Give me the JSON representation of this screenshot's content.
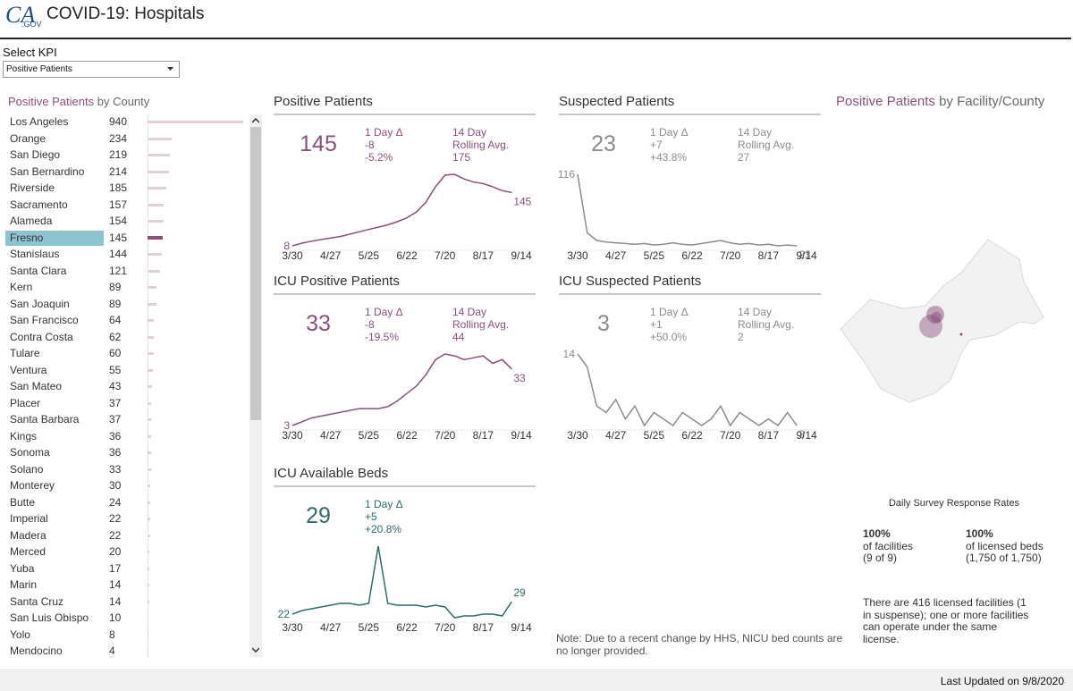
{
  "header": {
    "logo": "CA",
    "logo_sub": ".GOV",
    "title": "COVID-19: Hospitals"
  },
  "kpi": {
    "label": "Select KPI",
    "selected": "Positive Patients"
  },
  "county_list": {
    "title_kpi": "Positive Patients",
    "title_suffix": "by County",
    "selected": "Fresno",
    "counties": [
      {
        "name": "Los Angeles",
        "value": 940
      },
      {
        "name": "Orange",
        "value": 234
      },
      {
        "name": "San Diego",
        "value": 219
      },
      {
        "name": "San Bernardino",
        "value": 214
      },
      {
        "name": "Riverside",
        "value": 185
      },
      {
        "name": "Sacramento",
        "value": 157
      },
      {
        "name": "Alameda",
        "value": 154
      },
      {
        "name": "Fresno",
        "value": 145
      },
      {
        "name": "Stanislaus",
        "value": 144
      },
      {
        "name": "Santa Clara",
        "value": 121
      },
      {
        "name": "Kern",
        "value": 89
      },
      {
        "name": "San Joaquin",
        "value": 89
      },
      {
        "name": "San Francisco",
        "value": 64
      },
      {
        "name": "Contra Costa",
        "value": 62
      },
      {
        "name": "Tulare",
        "value": 60
      },
      {
        "name": "Ventura",
        "value": 55
      },
      {
        "name": "San Mateo",
        "value": 43
      },
      {
        "name": "Placer",
        "value": 37
      },
      {
        "name": "Santa Barbara",
        "value": 37
      },
      {
        "name": "Kings",
        "value": 36
      },
      {
        "name": "Sonoma",
        "value": 36
      },
      {
        "name": "Solano",
        "value": 33
      },
      {
        "name": "Monterey",
        "value": 30
      },
      {
        "name": "Butte",
        "value": 24
      },
      {
        "name": "Imperial",
        "value": 22
      },
      {
        "name": "Madera",
        "value": 22
      },
      {
        "name": "Merced",
        "value": 20
      },
      {
        "name": "Yuba",
        "value": 17
      },
      {
        "name": "Marin",
        "value": 14
      },
      {
        "name": "Santa Cruz",
        "value": 14
      },
      {
        "name": "San Luis Obispo",
        "value": 10
      },
      {
        "name": "Yolo",
        "value": 8
      },
      {
        "name": "Mendocino",
        "value": 4
      }
    ]
  },
  "cards": [
    {
      "title": "Positive Patients",
      "value": 145,
      "delta_label": "1 Day Δ",
      "delta": "-8",
      "delta_pct": "-5.2%",
      "avg_label": [
        "14 Day",
        "Rolling Avg."
      ],
      "avg": 175,
      "color": "#8a4f7d",
      "values": [
        8,
        15,
        20,
        24,
        28,
        32,
        38,
        44,
        50,
        56,
        62,
        70,
        80,
        95,
        120,
        160,
        190,
        192,
        180,
        172,
        168,
        160,
        150,
        145
      ],
      "xticks": [
        "3/30",
        "4/27",
        "5/25",
        "6/22",
        "7/20",
        "8/17",
        "9/14"
      ]
    },
    {
      "title": "ICU Positive Patients",
      "value": 33,
      "delta_label": "1 Day Δ",
      "delta": "-8",
      "delta_pct": "-19.5%",
      "avg_label": [
        "14 Day",
        "Rolling Avg."
      ],
      "avg": 44,
      "color": "#8a4f7d",
      "values": [
        3,
        5,
        7,
        8,
        9,
        10,
        11,
        12,
        12,
        12,
        13,
        16,
        20,
        24,
        30,
        38,
        41,
        40,
        38,
        39,
        40,
        36,
        38,
        33
      ],
      "xticks": [
        "3/30",
        "4/27",
        "5/25",
        "6/22",
        "7/20",
        "8/17",
        "9/14"
      ]
    },
    {
      "title": "ICU Available Beds",
      "value": 29,
      "delta_label": "1 Day Δ",
      "delta": "+5",
      "delta_pct": "+20.8%",
      "color": "#2f6b6b",
      "values": [
        22,
        24,
        25,
        26,
        27,
        28,
        28,
        27,
        28,
        60,
        28,
        27,
        27,
        27,
        26,
        27,
        26,
        20,
        21,
        21,
        22,
        22,
        21,
        29
      ],
      "xticks": [
        "3/30",
        "4/27",
        "5/25",
        "6/22",
        "7/20",
        "8/17",
        "9/14"
      ]
    },
    {
      "title": "Suspected Patients",
      "value": 23,
      "delta_label": "1 Day Δ",
      "delta": "+7",
      "delta_pct": "+43.8%",
      "avg_label": [
        "14 Day",
        "Rolling Avg."
      ],
      "avg": 27,
      "color": "#8c8c8c",
      "values": [
        116,
        40,
        30,
        28,
        27,
        26,
        25,
        26,
        24,
        25,
        27,
        25,
        24,
        26,
        28,
        30,
        27,
        25,
        26,
        24,
        25,
        23,
        24,
        23
      ],
      "xticks": [
        "3/30",
        "4/27",
        "5/25",
        "6/22",
        "7/20",
        "8/17",
        "9/14"
      ]
    },
    {
      "title": "ICU Suspected Patients",
      "value": 3,
      "delta_label": "1 Day Δ",
      "delta": "+1",
      "delta_pct": "+50.0%",
      "avg_label": [
        "14 Day",
        "Rolling Avg."
      ],
      "avg": 2,
      "color": "#8c8c8c",
      "values": [
        14,
        12,
        6,
        5,
        7,
        4,
        6,
        3,
        5,
        4,
        3,
        5,
        4,
        3,
        4,
        6,
        3,
        5,
        4,
        3,
        4,
        3,
        5,
        3
      ],
      "xticks": [
        "3/30",
        "4/27",
        "5/25",
        "6/22",
        "7/20",
        "8/17",
        "9/14"
      ]
    }
  ],
  "note": "Note: Due to a recent change by HHS, NICU bed counts are no longer provided.",
  "map": {
    "title_kpi": "Positive Patients",
    "title_suffix": "by Facility/County"
  },
  "survey": {
    "title": "Daily Survey Response Rates",
    "facilities": {
      "pct": "100%",
      "label": "of facilities",
      "count": "(9 of 9)"
    },
    "beds": {
      "pct": "100%",
      "label": "of licensed beds",
      "count": "(1,750 of 1,750)"
    },
    "footnote": "There are 416 licensed facilities (1 in suspense); one or more facilities can operate under the same license."
  },
  "footer": "Last Updated on 9/8/2020"
}
